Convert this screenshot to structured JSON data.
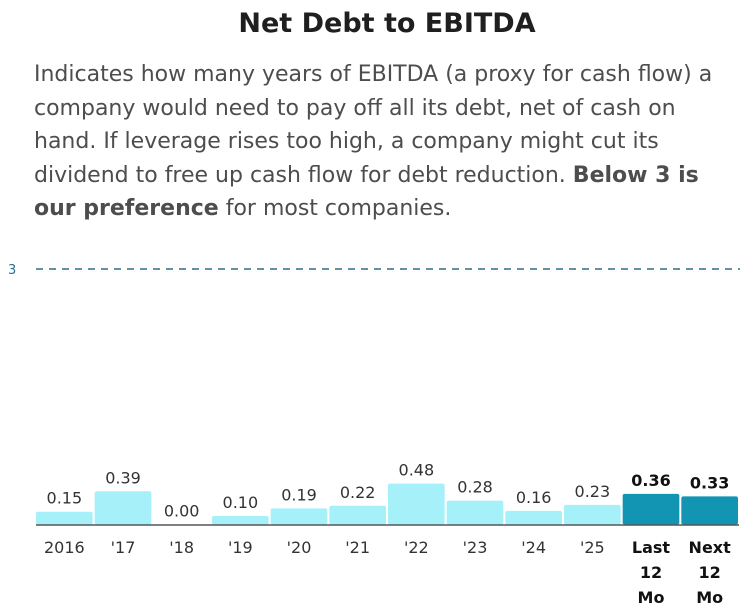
{
  "chart_data": {
    "type": "bar",
    "title": "Net Debt to EBITDA",
    "description": {
      "text": "Indicates how many years of EBITDA (a proxy for cash flow) a company would need to pay off all its debt, net of cash on hand. If leverage rises too high, a company might cut its dividend to free up cash flow for debt reduction. ",
      "emphasis": "Below 3 is our preference",
      "tail": " for most companies."
    },
    "categories": [
      "2016",
      "'17",
      "'18",
      "'19",
      "'20",
      "'21",
      "'22",
      "'23",
      "'24",
      "'25",
      "Last 12 Mo",
      "Next 12 Mo"
    ],
    "values": [
      0.15,
      0.39,
      0.0,
      0.1,
      0.19,
      0.22,
      0.48,
      0.28,
      0.16,
      0.23,
      0.36,
      0.33
    ],
    "value_labels": [
      "0.15",
      "0.39",
      "0.00",
      "0.10",
      "0.19",
      "0.22",
      "0.48",
      "0.28",
      "0.16",
      "0.23",
      "0.36",
      "0.33"
    ],
    "highlighted": [
      false,
      false,
      false,
      false,
      false,
      false,
      false,
      false,
      false,
      false,
      true,
      true
    ],
    "reference_line": {
      "value": 3,
      "label": "3",
      "style": "dashed"
    },
    "ylim": [
      0,
      3
    ],
    "xlabel": "",
    "ylabel": "",
    "grid": false,
    "legend": "none",
    "colors": {
      "bar": "#a6f0fa",
      "bar_highlight": "#1295b3",
      "baseline": "#555555",
      "reference": "#2a6f8c"
    }
  }
}
